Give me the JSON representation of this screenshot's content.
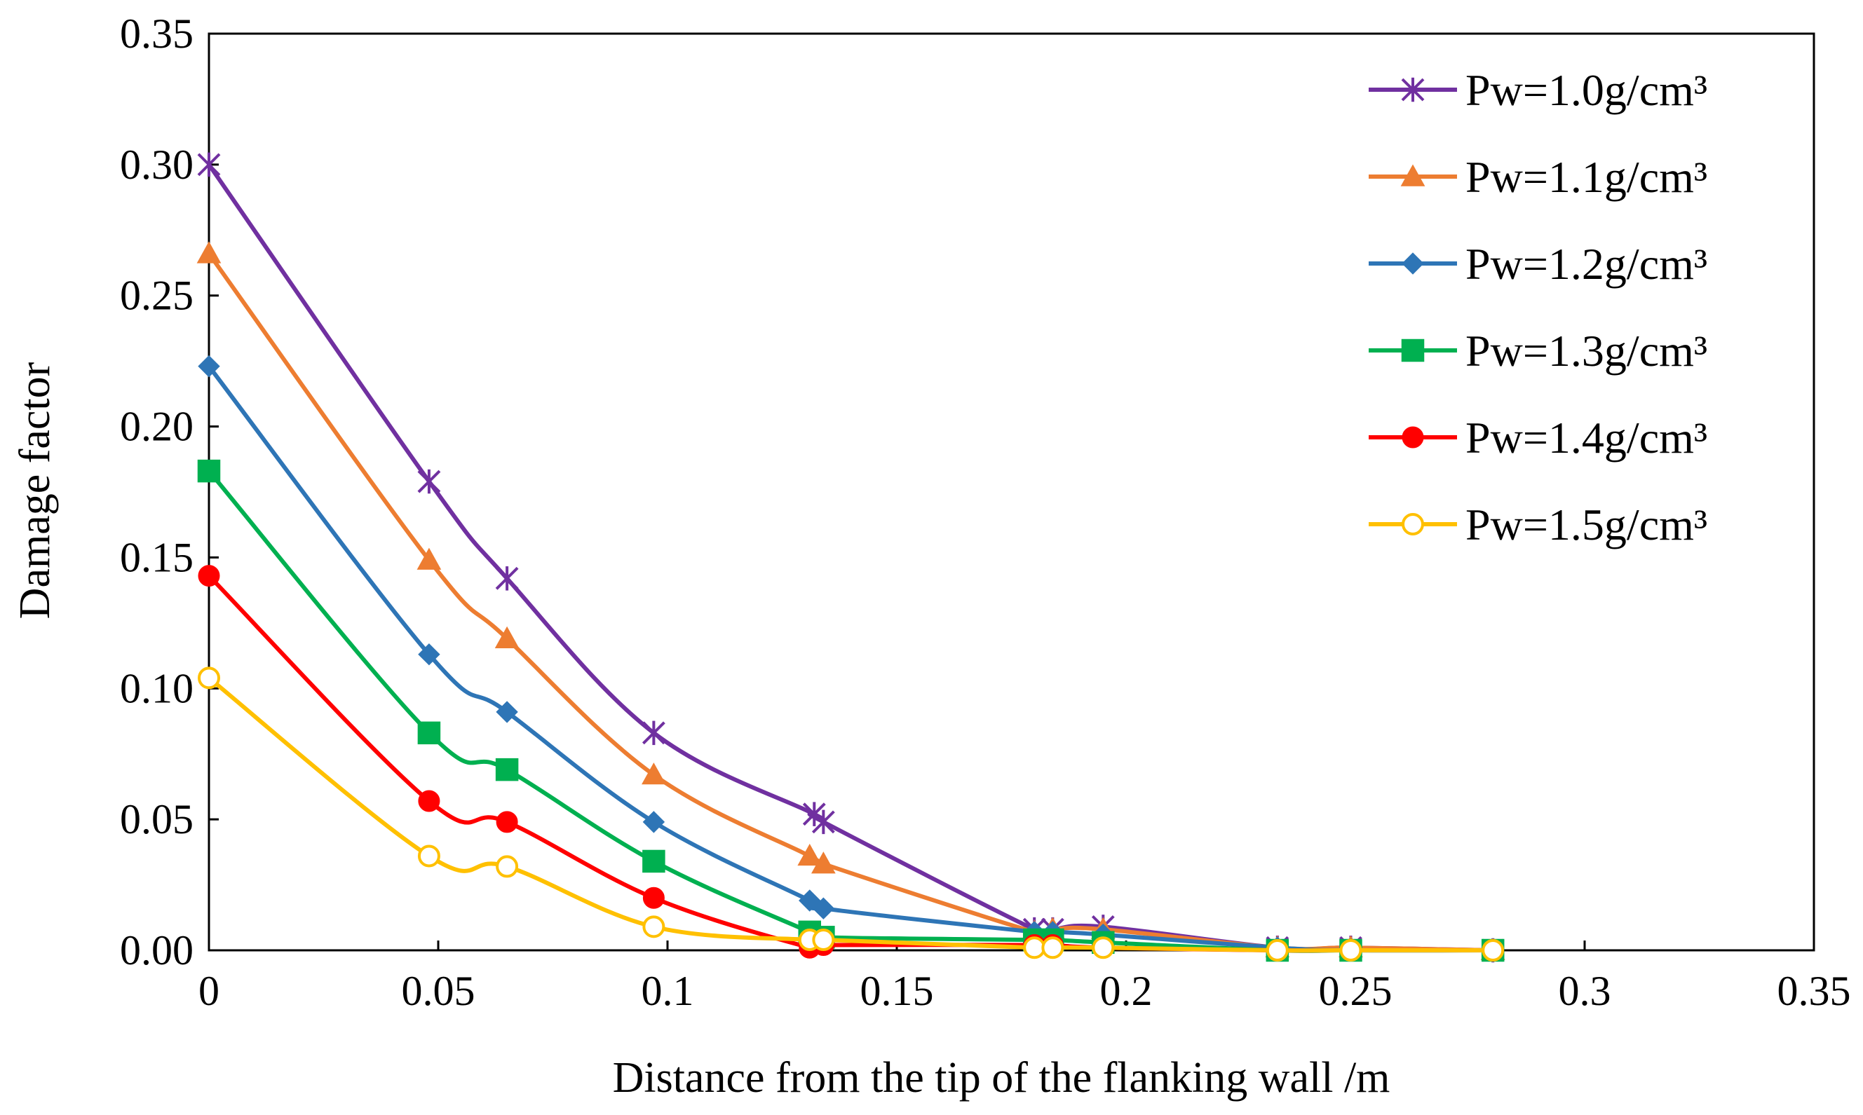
{
  "chart_data": {
    "type": "line",
    "title": "",
    "xlabel": "Distance from the tip of the flanking wall  /m",
    "ylabel": "Damage factor",
    "xlim": [
      0,
      0.35
    ],
    "ylim": [
      0,
      0.35
    ],
    "xticks": [
      0,
      0.05,
      0.1,
      0.15,
      0.2,
      0.25,
      0.3,
      0.35
    ],
    "xtick_labels": [
      "0",
      "0.05",
      "0.1",
      "0.15",
      "0.2",
      "0.25",
      "0.3",
      "0.35"
    ],
    "yticks": [
      0,
      0.05,
      0.1,
      0.15,
      0.2,
      0.25,
      0.3,
      0.35
    ],
    "ytick_labels": [
      "0.00",
      "0.05",
      "0.10",
      "0.15",
      "0.20",
      "0.25",
      "0.30",
      "0.35"
    ],
    "grid": false,
    "smooth": true,
    "legend_position": "top-right",
    "series": [
      {
        "name": "Pw=1.0g/cm³",
        "color": "#7030A0",
        "marker": "star",
        "x": [
          0,
          0.048,
          0.065,
          0.097,
          0.132,
          0.134,
          0.18,
          0.184,
          0.195,
          0.233,
          0.249,
          0.28
        ],
        "y": [
          0.3,
          0.179,
          0.142,
          0.083,
          0.052,
          0.049,
          0.008,
          0.008,
          0.009,
          0.001,
          0.001,
          0.0
        ]
      },
      {
        "name": "Pw=1.1g/cm³",
        "color": "#ED7D31",
        "marker": "triangle",
        "x": [
          0,
          0.048,
          0.065,
          0.097,
          0.131,
          0.134,
          0.18,
          0.184,
          0.195,
          0.233,
          0.249,
          0.28
        ],
        "y": [
          0.266,
          0.149,
          0.119,
          0.067,
          0.036,
          0.033,
          0.007,
          0.008,
          0.008,
          0.001,
          0.001,
          0.0
        ]
      },
      {
        "name": "Pw=1.2g/cm³",
        "color": "#2E75B6",
        "marker": "diamond",
        "x": [
          0,
          0.048,
          0.065,
          0.097,
          0.131,
          0.134,
          0.18,
          0.184,
          0.195,
          0.233,
          0.249,
          0.28
        ],
        "y": [
          0.223,
          0.113,
          0.091,
          0.049,
          0.019,
          0.016,
          0.007,
          0.007,
          0.006,
          0.001,
          0.0,
          0.0
        ]
      },
      {
        "name": "Pw=1.3g/cm³",
        "color": "#00B050",
        "marker": "square",
        "x": [
          0,
          0.048,
          0.065,
          0.097,
          0.131,
          0.134,
          0.18,
          0.184,
          0.195,
          0.233,
          0.249,
          0.28
        ],
        "y": [
          0.183,
          0.083,
          0.069,
          0.034,
          0.007,
          0.005,
          0.004,
          0.004,
          0.003,
          0.0,
          0.0,
          0.0
        ]
      },
      {
        "name": "Pw=1.4g/cm³",
        "color": "#FF0000",
        "marker": "circle",
        "x": [
          0,
          0.048,
          0.065,
          0.097,
          0.131,
          0.134,
          0.18,
          0.184,
          0.195,
          0.233,
          0.249,
          0.28
        ],
        "y": [
          0.143,
          0.057,
          0.049,
          0.02,
          0.001,
          0.002,
          0.002,
          0.002,
          0.001,
          0.0,
          0.0,
          0.0
        ]
      },
      {
        "name": "Pw=1.5g/cm³",
        "color": "#FFC000",
        "marker": "open-circle",
        "x": [
          0,
          0.048,
          0.065,
          0.097,
          0.131,
          0.134,
          0.18,
          0.184,
          0.195,
          0.233,
          0.249,
          0.28
        ],
        "y": [
          0.104,
          0.036,
          0.032,
          0.009,
          0.004,
          0.004,
          0.001,
          0.001,
          0.001,
          0.0,
          0.0,
          0.0
        ]
      }
    ]
  }
}
